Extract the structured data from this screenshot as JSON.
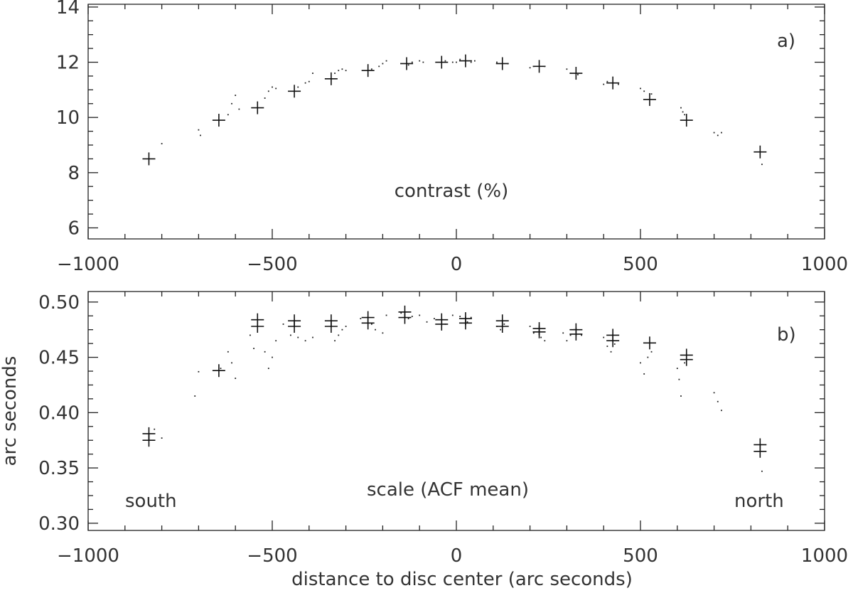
{
  "chart_data": [
    {
      "type": "scatter",
      "panel_label": "a)",
      "annotation": "contrast (%)",
      "xlim": [
        -1000,
        1000
      ],
      "ylim": [
        5.6,
        14.1
      ],
      "xticks": [
        -1000,
        -500,
        0,
        500,
        1000
      ],
      "xtick_labels": [
        "−1000",
        "−500",
        "0",
        "500",
        "1000"
      ],
      "yticks": [
        6,
        8,
        10,
        12,
        14
      ],
      "ytick_labels": [
        "6",
        "8",
        "10",
        "12",
        "14"
      ],
      "grid": false,
      "series": [
        {
          "marker": "plus",
          "x": [
            -835,
            -645,
            -540,
            -440,
            -340,
            -240,
            -135,
            -40,
            25,
            125,
            225,
            325,
            425,
            525,
            625,
            825
          ],
          "y": [
            8.5,
            9.9,
            10.35,
            10.95,
            11.4,
            11.7,
            11.95,
            12.0,
            12.05,
            11.95,
            11.85,
            11.6,
            11.25,
            10.65,
            9.9,
            8.75
          ]
        },
        {
          "marker": "dot",
          "x": [
            -800,
            -700,
            -695,
            -620,
            -610,
            -600,
            -590,
            -520,
            -510,
            -500,
            -490,
            -430,
            -410,
            -400,
            -390,
            -330,
            -320,
            -310,
            -300,
            -230,
            -210,
            -200,
            -190,
            -130,
            -120,
            -100,
            -90,
            -30,
            -10,
            0,
            10,
            40,
            50,
            110,
            140,
            200,
            210,
            240,
            300,
            310,
            330,
            400,
            410,
            440,
            500,
            510,
            530,
            610,
            615,
            620,
            700,
            710,
            720,
            830
          ],
          "y": [
            9.05,
            9.55,
            9.35,
            10.1,
            10.5,
            10.8,
            10.3,
            10.7,
            10.95,
            11.1,
            11.05,
            11.1,
            11.25,
            11.3,
            11.6,
            11.6,
            11.7,
            11.75,
            11.7,
            11.75,
            11.85,
            11.95,
            12.05,
            11.9,
            12.0,
            12.05,
            12.0,
            12.05,
            12.0,
            12.0,
            12.1,
            12.0,
            12.05,
            12.0,
            11.95,
            11.8,
            11.85,
            11.85,
            11.75,
            11.6,
            11.55,
            11.2,
            11.3,
            11.2,
            11.05,
            10.95,
            10.85,
            10.35,
            10.2,
            10.1,
            9.45,
            9.35,
            9.45,
            8.3
          ]
        }
      ]
    },
    {
      "type": "scatter",
      "panel_label": "b)",
      "annotation": "scale (ACF mean)",
      "left_label": "south",
      "right_label": "north",
      "xlabel": "distance to disc center (arc seconds)",
      "ylabel": "arc seconds",
      "xlim": [
        -1000,
        1000
      ],
      "ylim": [
        0.2935,
        0.5095
      ],
      "xticks": [
        -1000,
        -500,
        0,
        500,
        1000
      ],
      "xtick_labels": [
        "−1000",
        "−500",
        "0",
        "500",
        "1000"
      ],
      "yticks": [
        0.3,
        0.35,
        0.4,
        0.45,
        0.5
      ],
      "ytick_labels": [
        "0.30",
        "0.35",
        "0.40",
        "0.45",
        "0.50"
      ],
      "grid": false,
      "series": [
        {
          "marker": "plus",
          "x": [
            -835,
            -835,
            -645,
            -540,
            -540,
            -440,
            -440,
            -340,
            -340,
            -240,
            -240,
            -140,
            -140,
            -40,
            -40,
            25,
            25,
            125,
            125,
            225,
            225,
            325,
            325,
            425,
            425,
            525,
            625,
            625,
            825,
            825
          ],
          "y": [
            0.381,
            0.375,
            0.438,
            0.484,
            0.478,
            0.483,
            0.478,
            0.483,
            0.478,
            0.486,
            0.481,
            0.491,
            0.486,
            0.484,
            0.48,
            0.485,
            0.481,
            0.483,
            0.478,
            0.476,
            0.473,
            0.475,
            0.471,
            0.47,
            0.465,
            0.463,
            0.452,
            0.448,
            0.371,
            0.365
          ]
        },
        {
          "marker": "dot",
          "x": [
            -820,
            -800,
            -710,
            -700,
            -640,
            -620,
            -610,
            -600,
            -560,
            -550,
            -520,
            -510,
            -500,
            -490,
            -470,
            -450,
            -430,
            -410,
            -390,
            -330,
            -320,
            -310,
            -300,
            -260,
            -230,
            -220,
            -200,
            -190,
            -150,
            -130,
            -120,
            -100,
            -80,
            -60,
            -30,
            -10,
            10,
            30,
            40,
            110,
            120,
            130,
            200,
            210,
            230,
            240,
            290,
            300,
            310,
            320,
            340,
            400,
            410,
            420,
            430,
            500,
            510,
            520,
            530,
            600,
            605,
            610,
            620,
            700,
            710,
            720,
            830
          ],
          "y": [
            0.385,
            0.377,
            0.415,
            0.437,
            0.44,
            0.455,
            0.445,
            0.431,
            0.47,
            0.458,
            0.455,
            0.44,
            0.45,
            0.465,
            0.48,
            0.47,
            0.468,
            0.465,
            0.468,
            0.465,
            0.47,
            0.475,
            0.478,
            0.485,
            0.48,
            0.475,
            0.472,
            0.488,
            0.49,
            0.485,
            0.487,
            0.488,
            0.482,
            0.485,
            0.48,
            0.488,
            0.487,
            0.482,
            0.486,
            0.478,
            0.475,
            0.48,
            0.478,
            0.472,
            0.468,
            0.465,
            0.472,
            0.465,
            0.47,
            0.475,
            0.47,
            0.468,
            0.46,
            0.455,
            0.462,
            0.445,
            0.435,
            0.45,
            0.455,
            0.44,
            0.43,
            0.415,
            0.445,
            0.418,
            0.41,
            0.402,
            0.347
          ]
        }
      ]
    }
  ]
}
